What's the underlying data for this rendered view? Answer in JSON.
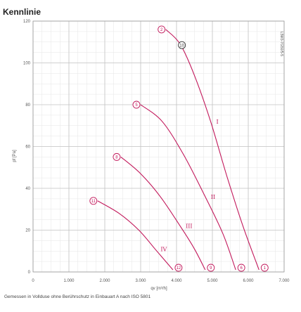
{
  "chart_data": {
    "type": "line",
    "title": "Kennlinie",
    "xlabel": "qv [m³/h]",
    "ylabel": "pf [Pa]",
    "xlim": [
      0,
      7000
    ],
    "ylim": [
      0,
      120
    ],
    "x_ticks": [
      0,
      1000,
      2000,
      3000,
      4000,
      5000,
      6000,
      7000
    ],
    "x_tick_labels": [
      "0",
      "1.000",
      "2.000",
      "3.000",
      "4.000",
      "5.000",
      "6.000",
      "7.000"
    ],
    "y_ticks": [
      0,
      20,
      40,
      60,
      80,
      100,
      120
    ],
    "y_tick_labels": [
      "0",
      "20",
      "40",
      "60",
      "80",
      "100",
      "120"
    ],
    "grid": true,
    "series": [
      {
        "name": "I",
        "start_marker": "2",
        "end_marker": "1",
        "points": [
          [
            3700,
            116
          ],
          [
            4100,
            109
          ],
          [
            4500,
            94
          ],
          [
            4950,
            72
          ],
          [
            5400,
            46
          ],
          [
            5850,
            22
          ],
          [
            6300,
            1
          ]
        ]
      },
      {
        "name": "II",
        "start_marker": "5",
        "end_marker": "6",
        "points": [
          [
            3000,
            80
          ],
          [
            3600,
            72
          ],
          [
            4200,
            56
          ],
          [
            4800,
            36
          ],
          [
            5300,
            18
          ],
          [
            5650,
            1
          ]
        ]
      },
      {
        "name": "III",
        "start_marker": "8",
        "end_marker": "9",
        "points": [
          [
            2450,
            55
          ],
          [
            3000,
            47
          ],
          [
            3550,
            36
          ],
          [
            4100,
            22
          ],
          [
            4500,
            11
          ],
          [
            4800,
            1
          ]
        ]
      },
      {
        "name": "IV",
        "start_marker": "11",
        "end_marker": "12",
        "points": [
          [
            1800,
            34
          ],
          [
            2400,
            28
          ],
          [
            2950,
            20
          ],
          [
            3400,
            11
          ],
          [
            3700,
            5
          ],
          [
            3900,
            1
          ]
        ]
      }
    ],
    "operating_point": {
      "label": "10",
      "x": 4150,
      "y": 108.5
    },
    "drawing_code": "L5M3-7G50/5-5",
    "note": "Gemessen in Vollduse ohne Berührschutz in Einbauart A nach ISO 5801"
  }
}
